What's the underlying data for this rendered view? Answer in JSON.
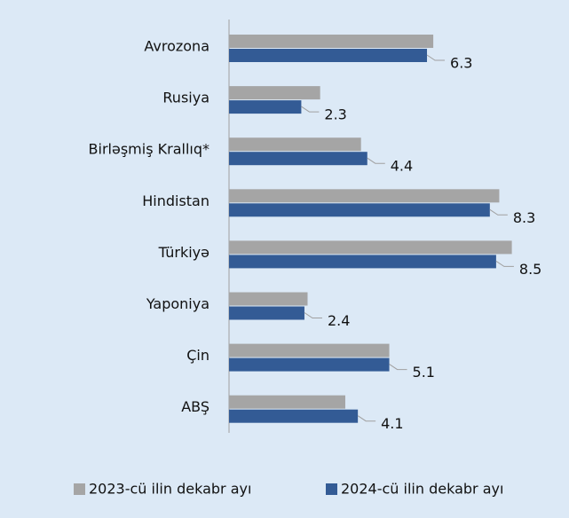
{
  "chart_data": {
    "type": "bar",
    "orientation": "horizontal",
    "categories": [
      "Avrozona",
      "Rusiya",
      "Birləşmiş Krallıq*",
      "Hindistan",
      "Türkiyə",
      "Yaponiya",
      "Çin",
      "ABŞ"
    ],
    "series": [
      {
        "name": "2023-cü ilin dekabr ayı",
        "color": "#a5a5a5",
        "values": [
          6.5,
          2.9,
          4.2,
          8.6,
          9.0,
          2.5,
          5.1,
          3.7
        ]
      },
      {
        "name": "2024-cü ilin dekabr ayı",
        "color": "#335b95",
        "values": [
          6.3,
          2.3,
          4.4,
          8.3,
          8.5,
          2.4,
          5.1,
          4.1
        ]
      }
    ],
    "xlim": [
      0,
      10
    ],
    "legend": "bottom"
  }
}
